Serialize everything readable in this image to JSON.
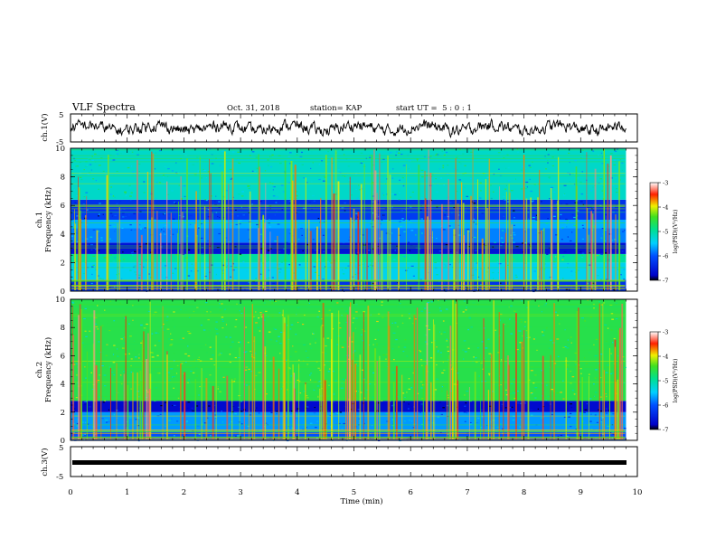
{
  "header": {
    "title": "VLF Spectra",
    "date": "Oct. 31, 2018",
    "station": "station= KAP",
    "start_ut": "start UT =  5 : 0 : 1"
  },
  "chart_data": [
    {
      "type": "line",
      "ylabel": "ch.1(V)",
      "ylim": [
        -5,
        5
      ],
      "yticks": [
        5,
        -5
      ],
      "xlim": [
        0,
        10
      ],
      "description_series": "waveform trace around 0 V",
      "series": [
        {
          "x_range": [
            0,
            9.8
          ],
          "level": 0
        }
      ]
    },
    {
      "type": "heatmap",
      "ylabel": "Frequency (kHz)",
      "channel_label": "ch.1",
      "ylim": [
        0,
        10
      ],
      "yticks": [
        "0",
        "2",
        "4",
        "6",
        "8",
        "10"
      ],
      "xlim": [
        0,
        9.8
      ],
      "colorbar": {
        "label": "log(PSD)(V²/Hz)",
        "range": [
          -7,
          -3
        ],
        "ticks": [
          "-3",
          "-4",
          "-5",
          "-6",
          "-7"
        ]
      },
      "bands": [
        {
          "f_from": 0,
          "f_to": 0.8,
          "level": -6.3
        },
        {
          "f_from": 0.8,
          "f_to": 2.0,
          "level": -5.4
        },
        {
          "f_from": 2.0,
          "f_to": 2.6,
          "level": -5.0
        },
        {
          "f_from": 2.6,
          "f_to": 3.4,
          "level": -6.6
        },
        {
          "f_from": 3.4,
          "f_to": 4.4,
          "level": -5.8
        },
        {
          "f_from": 4.4,
          "f_to": 5.0,
          "level": -5.6
        },
        {
          "f_from": 5.0,
          "f_to": 5.6,
          "level": -6.2
        },
        {
          "f_from": 5.6,
          "f_to": 6.4,
          "level": -6.3
        },
        {
          "f_from": 6.4,
          "f_to": 10.0,
          "level": -5.2
        }
      ]
    },
    {
      "type": "heatmap",
      "ylabel": "Frequency (kHz)",
      "channel_label": "ch.2",
      "ylim": [
        0,
        10
      ],
      "yticks": [
        "0",
        "2",
        "4",
        "6",
        "8",
        "10"
      ],
      "xlim": [
        0,
        9.8
      ],
      "colorbar": {
        "label": "log(PSD)(V²/Hz)",
        "range": [
          -7,
          -3
        ],
        "ticks": [
          "-3",
          "-4",
          "-5",
          "-6",
          "-7"
        ]
      },
      "bands": [
        {
          "f_from": 0,
          "f_to": 0.6,
          "level": -6.0
        },
        {
          "f_from": 0.6,
          "f_to": 2.0,
          "level": -5.7
        },
        {
          "f_from": 2.0,
          "f_to": 2.8,
          "level": -6.7
        },
        {
          "f_from": 2.8,
          "f_to": 10.0,
          "level": -4.6
        }
      ]
    },
    {
      "type": "line",
      "ylabel": "ch.3(V)",
      "ylim": [
        -5,
        5
      ],
      "yticks": [
        5,
        -5
      ],
      "xlim": [
        0,
        10
      ],
      "series": [
        {
          "x_range": [
            0,
            9.8
          ],
          "level": 0
        }
      ]
    }
  ],
  "xaxis": {
    "label": "Time (min)",
    "ticks": [
      "0",
      "1",
      "2",
      "3",
      "4",
      "5",
      "6",
      "7",
      "8",
      "9",
      "10"
    ],
    "range": [
      0,
      10
    ]
  }
}
